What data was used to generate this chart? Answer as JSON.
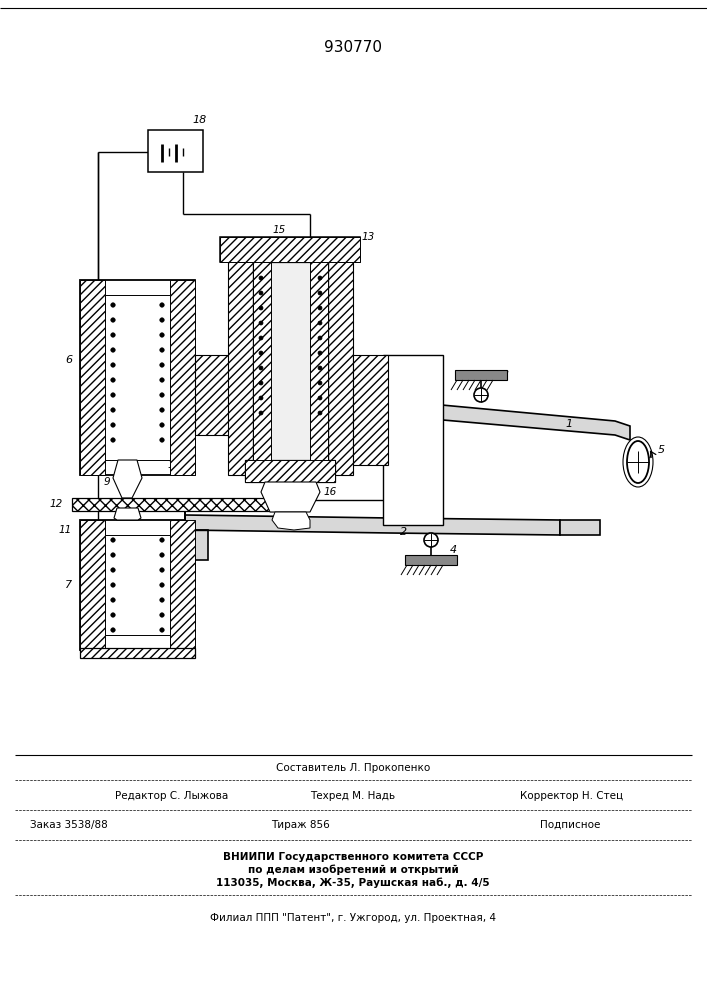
{
  "patent_number": "930770",
  "bg": "#ffffff",
  "footer": {
    "l1c": "Составитель Л. Прокопенко",
    "l2l": "Редактор С. Лыжова",
    "l2c": "Техред М. Надь",
    "l2r": "Корректор Н. Стец",
    "l3l": "Заказ 3538/88",
    "l3c": "Тираж 856",
    "l3r": "Подписное",
    "l4": "ВНИИПИ Государственного комитета СССР",
    "l5": "по делам изобретений и открытий",
    "l6": "113035, Москва, Ж-35, Раушская наб., д. 4/5",
    "l7": "Филиал ППП \"Патент\", г. Ужгород, ул. Проектная, 4"
  }
}
